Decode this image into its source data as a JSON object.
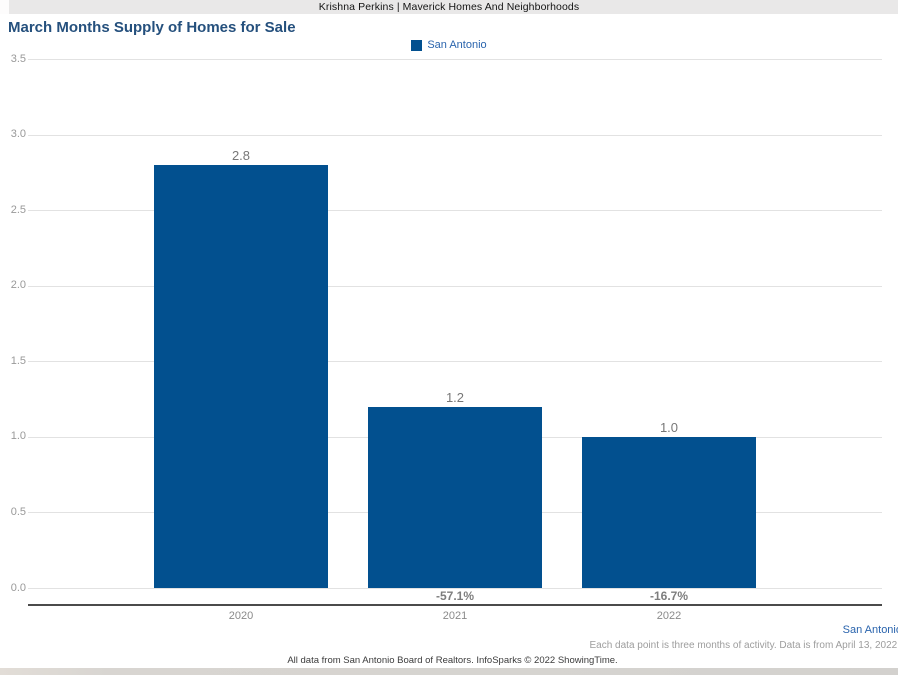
{
  "window": {
    "title": "Krishna Perkins | Maverick Homes And Neighborhoods"
  },
  "chart": {
    "title": "March Months Supply of Homes for Sale",
    "legend": [
      {
        "label": "San Antonio",
        "color": "#02508F"
      }
    ]
  },
  "chart_data": {
    "type": "bar",
    "title": "March Months Supply of Homes for Sale",
    "categories": [
      "2020",
      "2021",
      "2022"
    ],
    "series": [
      {
        "name": "San Antonio",
        "color": "#02508F",
        "values": [
          2.8,
          1.2,
          1.0
        ]
      }
    ],
    "bar_value_labels": [
      "2.8",
      "1.2",
      "1.0"
    ],
    "pct_change_labels": [
      "",
      "-57.1%",
      "-16.7%"
    ],
    "ylim": [
      0,
      3.5
    ],
    "y_tick_step": 0.5,
    "y_tick_labels": [
      "0.0",
      "0.5",
      "1.0",
      "1.5",
      "2.0",
      "2.5",
      "3.0",
      "3.5"
    ],
    "grid": true,
    "legend_position": "top-center",
    "xlabel": "",
    "ylabel": ""
  },
  "footer": {
    "series_label": "San Antonio",
    "note": "Each data point is three months of activity. Data is from April 13, 2022.",
    "attribution": "All data from San Antonio Board of Realtors. InfoSparks © 2022 ShowingTime."
  },
  "colors": {
    "bar": "#02508F",
    "title_text": "#25507D",
    "legend_text": "#2A64AD",
    "gridline": "#E2E2E2",
    "axis_line": "#4B4B4B",
    "value_label": "#777777",
    "pct_label": "#7D7D7D",
    "year_label": "#8A8A8A",
    "note_text": "#9D9D9D",
    "topbar_bg": "#E9E8E8"
  }
}
